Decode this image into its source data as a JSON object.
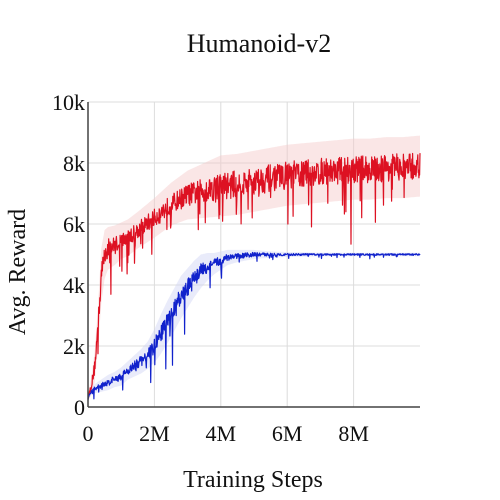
{
  "chart_data": {
    "type": "line",
    "title": "Humanoid-v2",
    "xlabel": "Training Steps",
    "ylabel": "Avg. Reward",
    "x_ticks": [
      {
        "value": 0,
        "label": "0"
      },
      {
        "value": 2000000,
        "label": "2M"
      },
      {
        "value": 4000000,
        "label": "4M"
      },
      {
        "value": 6000000,
        "label": "6M"
      },
      {
        "value": 8000000,
        "label": "8M"
      }
    ],
    "y_ticks": [
      {
        "value": 0,
        "label": "0"
      },
      {
        "value": 2000,
        "label": "2k"
      },
      {
        "value": 4000,
        "label": "4k"
      },
      {
        "value": 6000,
        "label": "6k"
      },
      {
        "value": 8000,
        "label": "8k"
      },
      {
        "value": 10000,
        "label": "10k"
      }
    ],
    "xlim": [
      0,
      10000000
    ],
    "ylim": [
      0,
      10000
    ],
    "grid": true,
    "legend": "none",
    "series": [
      {
        "color": "#dd1122",
        "band_color": "#f5c8c8",
        "x": [
          0,
          100000,
          200000,
          300000,
          400000,
          500000,
          600000,
          800000,
          1000000,
          1200000,
          1500000,
          2000000,
          2500000,
          3000000,
          3500000,
          4000000,
          4500000,
          5000000,
          5500000,
          6000000,
          6500000,
          7000000,
          7500000,
          8000000,
          8500000,
          9000000,
          9500000,
          10000000
        ],
        "y": [
          300,
          700,
          1300,
          2600,
          4300,
          5000,
          5200,
          5300,
          5450,
          5550,
          5800,
          6200,
          6650,
          6950,
          7100,
          7250,
          7300,
          7400,
          7500,
          7600,
          7650,
          7700,
          7750,
          7800,
          7800,
          7850,
          7850,
          7900
        ],
        "band_width": [
          100,
          300,
          500,
          700,
          900,
          800,
          700,
          650,
          600,
          600,
          600,
          650,
          700,
          800,
          900,
          1000,
          1000,
          1000,
          1000,
          1000,
          1000,
          1000,
          1000,
          1000,
          1000,
          1000,
          1000,
          1000
        ]
      },
      {
        "color": "#1122cc",
        "band_color": "#cfd3f5",
        "x": [
          0,
          100000,
          200000,
          400000,
          600000,
          800000,
          1000000,
          1200000,
          1400000,
          1600000,
          1800000,
          2000000,
          2200000,
          2400000,
          2600000,
          2800000,
          3000000,
          3200000,
          3400000,
          3600000,
          3800000,
          4000000,
          4200000,
          4500000,
          5000000,
          5500000,
          6000000,
          7000000,
          8000000,
          9000000,
          10000000
        ],
        "y": [
          300,
          500,
          600,
          700,
          800,
          900,
          1000,
          1200,
          1350,
          1500,
          1700,
          2000,
          2400,
          2800,
          3200,
          3600,
          3900,
          4200,
          4450,
          4600,
          4700,
          4800,
          4900,
          4950,
          5000,
          5000,
          5000,
          5000,
          5000,
          5000,
          5000
        ],
        "band_width": [
          50,
          100,
          150,
          200,
          250,
          250,
          300,
          300,
          350,
          400,
          450,
          550,
          650,
          700,
          700,
          700,
          650,
          600,
          550,
          450,
          350,
          300,
          250,
          200,
          150,
          100,
          80,
          60,
          60,
          60,
          60
        ]
      }
    ]
  }
}
